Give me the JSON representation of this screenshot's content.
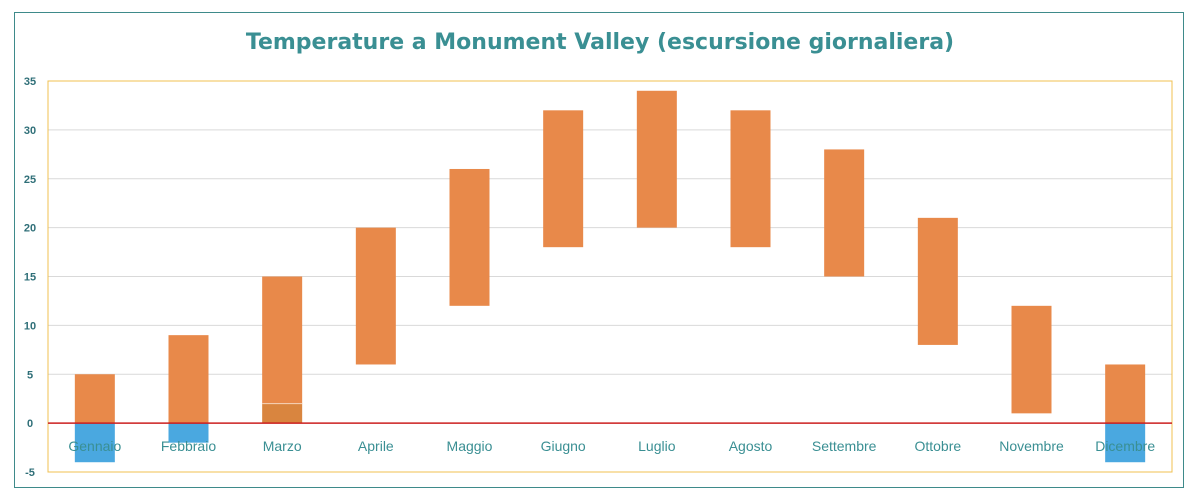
{
  "chart_data": {
    "type": "bar",
    "title": "Temperature a Monument Valley (escursione giornaliera)",
    "xlabel": "",
    "ylabel": "",
    "categories": [
      "Gennaio",
      "Febbraio",
      "Marzo",
      "Aprile",
      "Maggio",
      "Giugno",
      "Luglio",
      "Agosto",
      "Settembre",
      "Ottobre",
      "Novembre",
      "Dicembre"
    ],
    "series": [
      {
        "low": [
          -4,
          -2,
          0,
          6,
          12,
          18,
          20,
          18,
          15,
          8,
          1,
          -4
        ],
        "high": [
          5,
          9,
          15,
          20,
          26,
          32,
          34,
          32,
          28,
          21,
          12,
          6
        ]
      }
    ],
    "ylim": [
      -5,
      35
    ],
    "yticks": [
      -5,
      0,
      5,
      10,
      15,
      20,
      25,
      30,
      35
    ],
    "grid": true,
    "legend": "none",
    "colors": {
      "positive": "#e8894a",
      "negative": "#4aa8e0",
      "marzo_lower": "#d9853f",
      "zero_line": "#cc1f1f",
      "plot_border": "#f0c050",
      "grid": "#d9d9d9"
    }
  }
}
